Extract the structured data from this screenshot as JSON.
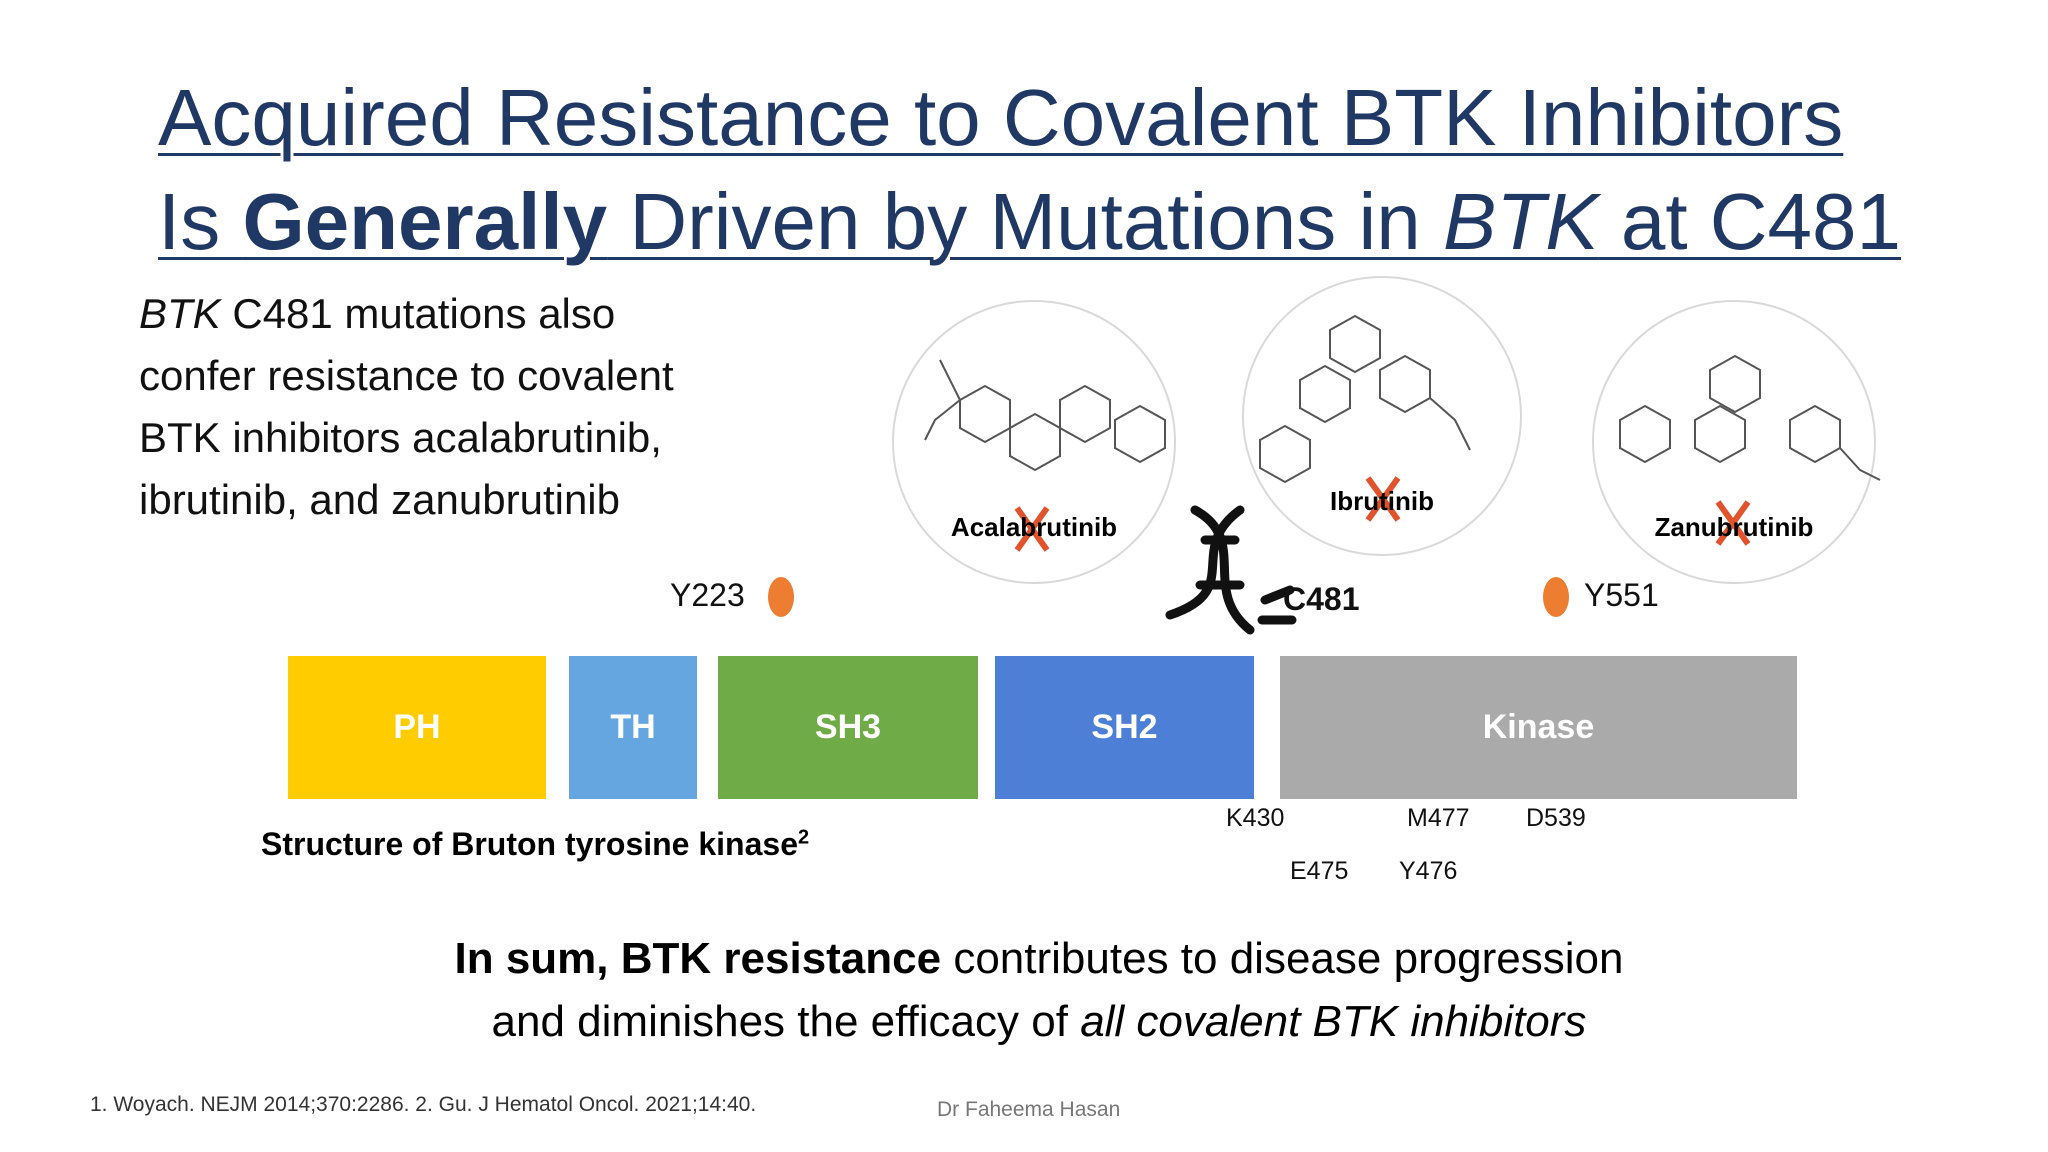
{
  "title": {
    "line1": "Acquired Resistance to Covalent BTK Inhibitors",
    "line2": [
      "Is ",
      "Generally",
      " Driven by Mutations in ",
      "BTK",
      " at C481"
    ]
  },
  "body": {
    "lines": [
      [
        "BTK",
        " C481 mutations also"
      ],
      [
        "confer resistance to covalent"
      ],
      [
        "BTK inhibitors acalabrutinib,"
      ],
      [
        "ibrutinib, and zanubrutinib"
      ]
    ]
  },
  "drugs": [
    "Acalabrutinib",
    "Ibrutinib",
    "Zanubrutinib"
  ],
  "sites": {
    "top": [
      "Y223",
      "C481",
      "Y551"
    ],
    "bottom": [
      "K430",
      "M477",
      "D539",
      "E475",
      "Y476"
    ]
  },
  "domains": [
    {
      "label": "PH",
      "color": "#ffcc00"
    },
    {
      "label": "TH",
      "color": "#66a6e0"
    },
    {
      "label": "SH3",
      "color": "#6fab46"
    },
    {
      "label": "SH2",
      "color": "#4e7fd6"
    },
    {
      "label": "Kinase",
      "color": "#aaaaaa"
    }
  ],
  "caption": {
    "text": "Structure of Bruton tyrosine kinase",
    "superscript": "2"
  },
  "summary": {
    "bold": "In sum, BTK resistance",
    "text": " contributes to disease progression",
    "line2": "and diminishes the efficacy of ",
    "italic": "all covalent BTK inhibitors"
  },
  "footnote": "1. Woyach. NEJM 2014;370:2286. 2. Gu. J Hematol Oncol. 2021;14:40.",
  "author": "Dr Faheema Hasan"
}
